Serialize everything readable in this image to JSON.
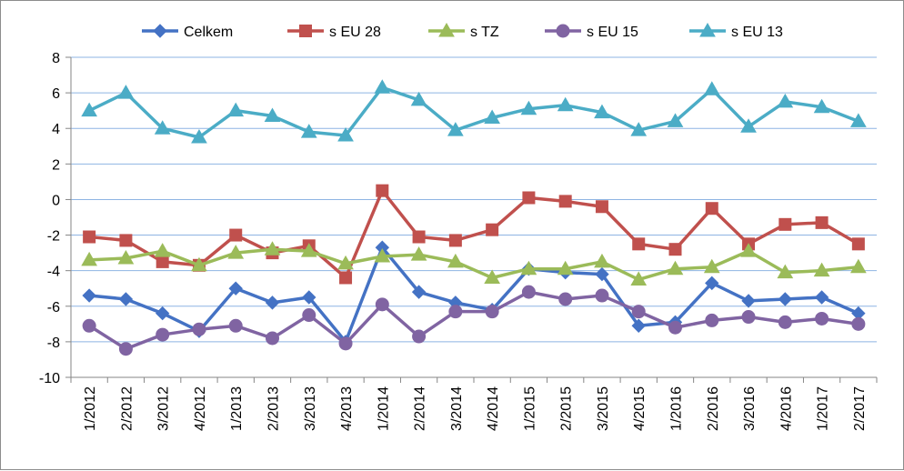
{
  "chart_data": {
    "type": "line",
    "categories": [
      "1/2012",
      "2/2012",
      "3/2012",
      "4/2012",
      "1/2013",
      "2/2013",
      "3/2013",
      "4/2013",
      "1/2014",
      "2/2014",
      "3/2014",
      "4/2014",
      "1/2015",
      "2/2015",
      "3/2015",
      "4/2015",
      "1/2016",
      "2/2016",
      "3/2016",
      "4/2016",
      "1/2017",
      "2/2017"
    ],
    "ylim": [
      -10,
      8
    ],
    "yticks": [
      "8",
      "6",
      "4",
      "2",
      "0",
      "-2",
      "-4",
      "-6",
      "-8",
      "-10"
    ],
    "grid": true,
    "legend_position": "top",
    "series": [
      {
        "name": "Celkem",
        "color": "#4472C4",
        "marker": "diamond",
        "values": [
          -5.4,
          -5.6,
          -6.4,
          -7.4,
          -5.0,
          -5.8,
          -5.5,
          -8.0,
          -2.7,
          -5.2,
          -5.8,
          -6.2,
          -3.9,
          -4.1,
          -4.2,
          -7.1,
          -6.9,
          -4.7,
          -5.7,
          -5.6,
          -5.5,
          -6.4
        ]
      },
      {
        "name": "s EU 28",
        "color": "#C0504D",
        "marker": "square",
        "values": [
          -2.1,
          -2.3,
          -3.5,
          -3.7,
          -2.0,
          -3.0,
          -2.6,
          -4.4,
          0.5,
          -2.1,
          -2.3,
          -1.7,
          0.1,
          -0.1,
          -0.4,
          -2.5,
          -2.8,
          -0.5,
          -2.5,
          -1.4,
          -1.3,
          -2.5
        ]
      },
      {
        "name": "s TZ",
        "color": "#9BBB59",
        "marker": "triangle",
        "values": [
          -3.4,
          -3.3,
          -2.9,
          -3.7,
          -3.0,
          -2.8,
          -2.9,
          -3.6,
          -3.2,
          -3.1,
          -3.5,
          -4.4,
          -3.9,
          -3.9,
          -3.5,
          -4.5,
          -3.9,
          -3.8,
          -2.9,
          -4.1,
          -4.0,
          -3.8
        ]
      },
      {
        "name": "s  EU 15",
        "color": "#8064A2",
        "marker": "circle",
        "values": [
          -7.1,
          -8.4,
          -7.6,
          -7.3,
          -7.1,
          -7.8,
          -6.5,
          -8.1,
          -5.9,
          -7.7,
          -6.3,
          -6.3,
          -5.2,
          -5.6,
          -5.4,
          -6.3,
          -7.2,
          -6.8,
          -6.6,
          -6.9,
          -6.7,
          -7.0
        ]
      },
      {
        "name": "s EU 13",
        "color": "#4BACC6",
        "marker": "triangle",
        "values": [
          5.0,
          6.0,
          4.0,
          3.5,
          5.0,
          4.7,
          3.8,
          3.6,
          6.3,
          5.6,
          3.9,
          4.6,
          5.1,
          5.3,
          4.9,
          3.9,
          4.4,
          6.2,
          4.1,
          5.5,
          5.2,
          4.4
        ]
      }
    ]
  }
}
